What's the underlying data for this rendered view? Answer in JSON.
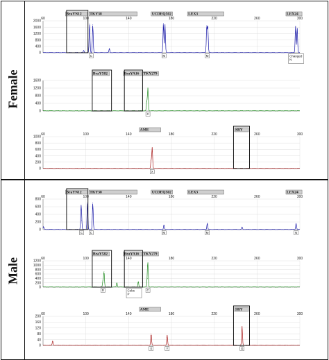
{
  "sections": [
    {
      "label": "Female",
      "panels": [
        {
          "color": "#1a1aa8",
          "xlim": [
            60,
            300
          ],
          "ylim": [
            0,
            2000
          ],
          "y_ticks": [
            0,
            400,
            800,
            1200,
            1600,
            2000
          ],
          "x_ticks": [
            60,
            100,
            140,
            180,
            220,
            260,
            300
          ],
          "markers": [
            {
              "text": "BraYN12",
              "x0": 81,
              "x1": 101
            },
            {
              "text": "TKY38",
              "x0": 103,
              "x1": 148
            },
            {
              "text": "UCDEQ502",
              "x0": 161,
              "x1": 181
            },
            {
              "text": "LEX3",
              "x0": 195,
              "x1": 229
            },
            {
              "text": "LEX24",
              "x0": 287,
              "x1": 302
            }
          ],
          "peaks": [
            {
              "x": 98,
              "h": 120
            },
            {
              "x": 103.5,
              "h": 1800
            },
            {
              "x": 106.5,
              "h": 1750
            },
            {
              "x": 122,
              "h": 250
            },
            {
              "x": 172.5,
              "h": 1850
            },
            {
              "x": 174,
              "h": 1750
            },
            {
              "x": 213,
              "h": 1700
            },
            {
              "x": 214,
              "h": 1600
            },
            {
              "x": 296,
              "h": 1650
            },
            {
              "x": 297.5,
              "h": 1550
            }
          ],
          "peak_labels": [
            {
              "x": 105,
              "text": "C"
            },
            {
              "x": 173,
              "text": "M"
            },
            {
              "x": 213.5,
              "text": "M"
            }
          ],
          "callouts": [
            {
              "x": 296.5,
              "lines": [
                "Changed",
                "N"
              ]
            }
          ],
          "boxes": [
            {
              "x0": 82,
              "x1": 102,
              "extend_down": 0
            }
          ]
        },
        {
          "color": "#1e8a1e",
          "xlim": [
            60,
            300
          ],
          "ylim": [
            0,
            1600
          ],
          "y_ticks": [
            0,
            400,
            800,
            1200,
            1600
          ],
          "x_ticks": [],
          "markers": [
            {
              "text": "BraY582",
              "x0": 106,
              "x1": 122
            },
            {
              "text": "BraYA16",
              "x0": 135,
              "x1": 152
            },
            {
              "text": "TKY279",
              "x0": 153,
              "x1": 168
            }
          ],
          "peaks": [
            {
              "x": 158,
              "h": 1200
            },
            {
              "x": 157,
              "h": 500
            }
          ],
          "peak_labels": [
            {
              "x": 158,
              "text": "C"
            }
          ],
          "callouts": [],
          "boxes": [
            {
              "x0": 106,
              "x1": 124,
              "extend_down": 0
            },
            {
              "x0": 136,
              "x1": 153,
              "extend_down": 0
            }
          ]
        },
        {
          "color": "#a81a1a",
          "xlim": [
            60,
            300
          ],
          "ylim": [
            0,
            1000
          ],
          "y_ticks": [
            0,
            200,
            400,
            600,
            800,
            1000
          ],
          "x_ticks": [
            60,
            100,
            140,
            180,
            220,
            260,
            300
          ],
          "markers": [
            {
              "text": "AME",
              "x0": 150,
              "x1": 170
            },
            {
              "text": "SRY",
              "x0": 239,
              "x1": 252
            }
          ],
          "peaks": [
            {
              "x": 162,
              "h": 650
            },
            {
              "x": 161,
              "h": 250
            }
          ],
          "peak_labels": [
            {
              "x": 162,
              "text": "X"
            }
          ],
          "callouts": [],
          "boxes": [
            {
              "x0": 238,
              "x1": 253,
              "extend_down": 0
            }
          ]
        }
      ]
    },
    {
      "label": "Male",
      "panels": [
        {
          "color": "#1a1aa8",
          "xlim": [
            60,
            300
          ],
          "ylim": [
            0,
            800
          ],
          "y_ticks": [
            0,
            200,
            400,
            600,
            800
          ],
          "x_ticks": [
            60,
            100,
            140,
            180,
            220,
            260,
            300
          ],
          "markers": [
            {
              "text": "BraYN12",
              "x0": 81,
              "x1": 101
            },
            {
              "text": "TKY38",
              "x0": 103,
              "x1": 148
            },
            {
              "text": "UCDEQ502",
              "x0": 161,
              "x1": 181
            },
            {
              "text": "LEX3",
              "x0": 195,
              "x1": 229
            },
            {
              "text": "LEX24",
              "x0": 287,
              "x1": 302
            }
          ],
          "peaks": [
            {
              "x": 95.5,
              "h": 510
            },
            {
              "x": 96,
              "h": 250
            },
            {
              "x": 101.5,
              "h": 700
            },
            {
              "x": 106.5,
              "h": 700
            },
            {
              "x": 173,
              "h": 120
            },
            {
              "x": 213.5,
              "h": 170
            },
            {
              "x": 296.5,
              "h": 160
            },
            {
              "x": 246,
              "h": 60
            },
            {
              "x": 60.5,
              "h": 70
            }
          ],
          "peak_labels": [
            {
              "x": 96,
              "text": "C"
            },
            {
              "x": 105,
              "text": "C"
            },
            {
              "x": 173,
              "text": "M"
            },
            {
              "x": 213.5,
              "text": "M"
            },
            {
              "x": 296.5,
              "text": "N"
            }
          ],
          "callouts": [],
          "boxes": [
            {
              "x0": 82,
              "x1": 102,
              "extend_down": 0
            }
          ]
        },
        {
          "color": "#1e8a1e",
          "xlim": [
            60,
            300
          ],
          "ylim": [
            0,
            1200
          ],
          "y_ticks": [
            0,
            200,
            400,
            600,
            800,
            1000,
            1200
          ],
          "x_ticks": [
            60,
            100,
            140,
            180,
            220,
            260,
            300
          ],
          "markers": [
            {
              "text": "BraY582",
              "x0": 106,
              "x1": 122
            },
            {
              "text": "BraYA16",
              "x0": 135,
              "x1": 152
            },
            {
              "text": "TKY279",
              "x0": 153,
              "x1": 168
            }
          ],
          "peaks": [
            {
              "x": 117,
              "h": 700
            },
            {
              "x": 116,
              "h": 300
            },
            {
              "x": 129,
              "h": 200
            },
            {
              "x": 149,
              "h": 250
            },
            {
              "x": 158,
              "h": 950
            },
            {
              "x": 157.5,
              "h": 400
            }
          ],
          "peak_labels": [
            {
              "x": 116,
              "text": "D"
            },
            {
              "x": 158,
              "text": "C"
            }
          ],
          "callouts": [
            {
              "x": 145,
              "lines": [
                "Cobs",
                "P"
              ]
            }
          ],
          "boxes": [
            {
              "x0": 106,
              "x1": 124,
              "extend_down": 0
            },
            {
              "x0": 136,
              "x1": 153,
              "extend_down": 0
            }
          ]
        },
        {
          "color": "#a81a1a",
          "xlim": [
            60,
            300
          ],
          "ylim": [
            0,
            200
          ],
          "y_ticks": [
            0,
            40,
            80,
            120,
            160,
            200
          ],
          "x_ticks": [
            60,
            100,
            140,
            180,
            220,
            260,
            300
          ],
          "markers": [
            {
              "text": "AME",
              "x0": 150,
              "x1": 170
            },
            {
              "text": "SRY",
              "x0": 239,
              "x1": 252
            }
          ],
          "peaks": [
            {
              "x": 69,
              "h": 30
            },
            {
              "x": 161,
              "h": 80
            },
            {
              "x": 176,
              "h": 70
            },
            {
              "x": 246,
              "h": 130
            }
          ],
          "peak_labels": [
            {
              "x": 161,
              "text": "X"
            },
            {
              "x": 176,
              "text": "Y"
            },
            {
              "x": 246,
              "text": "G"
            }
          ],
          "callouts": [],
          "boxes": [
            {
              "x0": 238,
              "x1": 253,
              "extend_down": 0
            }
          ]
        }
      ]
    }
  ],
  "chart_data": [
    {
      "type": "line",
      "series": [
        {
          "values": [
            [
              98,
              120
            ],
            [
              103.5,
              1800
            ],
            [
              106.5,
              1750
            ],
            [
              122,
              250
            ],
            [
              172.5,
              1850
            ],
            [
              174,
              1750
            ],
            [
              213,
              1700
            ],
            [
              214,
              1600
            ],
            [
              296,
              1650
            ],
            [
              297.5,
              1550
            ]
          ]
        }
      ],
      "xlim": [
        60,
        300
      ],
      "ylim": [
        0,
        2000
      ]
    },
    {
      "type": "line",
      "series": [
        {
          "values": [
            [
              157,
              500
            ],
            [
              158,
              1200
            ]
          ]
        }
      ],
      "xlim": [
        60,
        300
      ],
      "ylim": [
        0,
        1600
      ]
    },
    {
      "type": "line",
      "series": [
        {
          "values": [
            [
              161,
              250
            ],
            [
              162,
              650
            ]
          ]
        }
      ],
      "xlim": [
        60,
        300
      ],
      "ylim": [
        0,
        1000
      ]
    },
    {
      "type": "line",
      "series": [
        {
          "values": [
            [
              60.5,
              70
            ],
            [
              95.5,
              510
            ],
            [
              96,
              250
            ],
            [
              101.5,
              700
            ],
            [
              106.5,
              700
            ],
            [
              173,
              120
            ],
            [
              213.5,
              170
            ],
            [
              246,
              60
            ],
            [
              296.5,
              160
            ]
          ]
        }
      ],
      "xlim": [
        60,
        300
      ],
      "ylim": [
        0,
        800
      ]
    },
    {
      "type": "line",
      "series": [
        {
          "values": [
            [
              116,
              300
            ],
            [
              117,
              700
            ],
            [
              129,
              200
            ],
            [
              149,
              250
            ],
            [
              157.5,
              400
            ],
            [
              158,
              950
            ]
          ]
        }
      ],
      "xlim": [
        60,
        300
      ],
      "ylim": [
        0,
        1200
      ]
    },
    {
      "type": "line",
      "series": [
        {
          "values": [
            [
              69,
              30
            ],
            [
              161,
              80
            ],
            [
              176,
              70
            ],
            [
              246,
              130
            ]
          ]
        }
      ],
      "xlim": [
        60,
        300
      ],
      "ylim": [
        0,
        200
      ]
    }
  ]
}
